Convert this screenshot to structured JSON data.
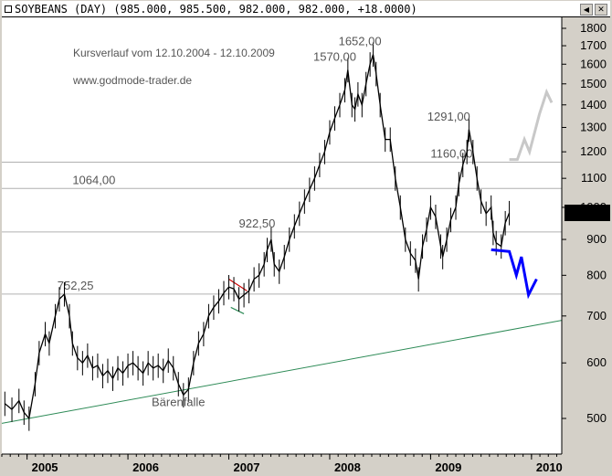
{
  "header": {
    "title": "SOYBEANS (DAY) (985.000, 985.500, 982.000, 982.000, +18.0000)"
  },
  "icons": {
    "close": "close-icon",
    "scroll": "scroll-left-icon"
  },
  "colors": {
    "price": "#000000",
    "support_line": "#2e8b57",
    "bearish_projection": "#0000ff",
    "bullish_projection": "#c8c8c8",
    "last_price_bg": "#000000",
    "last_price_fg": "#00ff00",
    "level_line": "#b0b0b0",
    "triangle": "#cc0000"
  },
  "chart_data": {
    "type": "line",
    "title": "Kursverlauf vom 12.10.2004 - 12.10.2009",
    "subtitle": "www.godmode-trader.de",
    "y_scale": "log",
    "ylim": [
      440,
      1880
    ],
    "xlim": [
      2004.75,
      2010.3
    ],
    "y_ticks": [
      {
        "value": 500,
        "label": "500"
      },
      {
        "value": 600,
        "label": "600"
      },
      {
        "value": 700,
        "label": "700"
      },
      {
        "value": 800,
        "label": "800"
      },
      {
        "value": 900,
        "label": "900"
      },
      {
        "value": 1000,
        "label": "1000"
      },
      {
        "value": 1100,
        "label": "1100"
      },
      {
        "value": 1200,
        "label": "1200"
      },
      {
        "value": 1300,
        "label": "1300"
      },
      {
        "value": 1400,
        "label": "1400"
      },
      {
        "value": 1500,
        "label": "1500"
      },
      {
        "value": 1600,
        "label": "1600"
      },
      {
        "value": 1700,
        "label": "1700"
      },
      {
        "value": 1800,
        "label": "1800"
      }
    ],
    "x_ticks": [
      {
        "value": 2005,
        "label": "2005"
      },
      {
        "value": 2006,
        "label": "2006"
      },
      {
        "value": 2007,
        "label": "2007"
      },
      {
        "value": 2008,
        "label": "2008"
      },
      {
        "value": 2009,
        "label": "2009"
      },
      {
        "value": 2010,
        "label": "2010"
      }
    ],
    "last_price": {
      "value": 982,
      "label": "982.00"
    },
    "levels": [
      {
        "value": 752.25,
        "label": "752,25",
        "x_start": 2004.75,
        "label_x": 2005.3
      },
      {
        "value": 922.5,
        "label": "922,50",
        "x_start": 2004.75,
        "label_x": 2007.1
      },
      {
        "value": 1064,
        "label": "1064,00",
        "x_start": 2004.75,
        "label_x": 2005.45
      },
      {
        "value": 1160,
        "label": "1160,00",
        "x_start": 2004.75,
        "label_x": 2009.0
      }
    ],
    "annotations": [
      {
        "label": "1652,00",
        "x": 2008.3,
        "y": 1652
      },
      {
        "label": "1570,00",
        "x": 2008.05,
        "y": 1570
      },
      {
        "label": "1291,00",
        "x": 2009.18,
        "y": 1291
      },
      {
        "label": "Bärenfalle",
        "x": 2006.5,
        "y": 540
      }
    ],
    "support_trendline": [
      [
        2004.75,
        492
      ],
      [
        2010.3,
        690
      ]
    ],
    "series": [
      {
        "points": [
          [
            2004.78,
            525
          ],
          [
            2004.85,
            515
          ],
          [
            2004.92,
            530
          ],
          [
            2004.97,
            510
          ],
          [
            2005.02,
            500
          ],
          [
            2005.08,
            560
          ],
          [
            2005.12,
            620
          ],
          [
            2005.18,
            660
          ],
          [
            2005.22,
            640
          ],
          [
            2005.28,
            700
          ],
          [
            2005.32,
            740
          ],
          [
            2005.37,
            752
          ],
          [
            2005.42,
            700
          ],
          [
            2005.45,
            640
          ],
          [
            2005.5,
            610
          ],
          [
            2005.55,
            600
          ],
          [
            2005.6,
            615
          ],
          [
            2005.65,
            590
          ],
          [
            2005.7,
            595
          ],
          [
            2005.75,
            575
          ],
          [
            2005.8,
            585
          ],
          [
            2005.85,
            570
          ],
          [
            2005.9,
            590
          ],
          [
            2005.95,
            580
          ],
          [
            2006.0,
            595
          ],
          [
            2006.05,
            600
          ],
          [
            2006.1,
            590
          ],
          [
            2006.15,
            580
          ],
          [
            2006.2,
            600
          ],
          [
            2006.25,
            590
          ],
          [
            2006.3,
            595
          ],
          [
            2006.35,
            585
          ],
          [
            2006.4,
            605
          ],
          [
            2006.45,
            590
          ],
          [
            2006.5,
            560
          ],
          [
            2006.55,
            540
          ],
          [
            2006.6,
            550
          ],
          [
            2006.65,
            600
          ],
          [
            2006.7,
            640
          ],
          [
            2006.75,
            660
          ],
          [
            2006.8,
            700
          ],
          [
            2006.85,
            720
          ],
          [
            2006.9,
            735
          ],
          [
            2006.95,
            755
          ],
          [
            2007.0,
            770
          ],
          [
            2007.05,
            765
          ],
          [
            2007.1,
            740
          ],
          [
            2007.15,
            750
          ],
          [
            2007.2,
            760
          ],
          [
            2007.25,
            790
          ],
          [
            2007.3,
            800
          ],
          [
            2007.35,
            830
          ],
          [
            2007.38,
            870
          ],
          [
            2007.42,
            900
          ],
          [
            2007.45,
            830
          ],
          [
            2007.5,
            810
          ],
          [
            2007.55,
            850
          ],
          [
            2007.6,
            900
          ],
          [
            2007.65,
            940
          ],
          [
            2007.7,
            980
          ],
          [
            2007.75,
            1020
          ],
          [
            2007.8,
            1060
          ],
          [
            2007.85,
            1100
          ],
          [
            2007.9,
            1150
          ],
          [
            2007.95,
            1200
          ],
          [
            2008.0,
            1280
          ],
          [
            2008.05,
            1340
          ],
          [
            2008.1,
            1400
          ],
          [
            2008.15,
            1470
          ],
          [
            2008.18,
            1570
          ],
          [
            2008.22,
            1400
          ],
          [
            2008.25,
            1380
          ],
          [
            2008.28,
            1450
          ],
          [
            2008.32,
            1400
          ],
          [
            2008.36,
            1500
          ],
          [
            2008.4,
            1600
          ],
          [
            2008.43,
            1652
          ],
          [
            2008.46,
            1550
          ],
          [
            2008.5,
            1400
          ],
          [
            2008.55,
            1250
          ],
          [
            2008.6,
            1250
          ],
          [
            2008.65,
            1100
          ],
          [
            2008.7,
            1000
          ],
          [
            2008.75,
            900
          ],
          [
            2008.8,
            860
          ],
          [
            2008.85,
            840
          ],
          [
            2008.88,
            790
          ],
          [
            2008.92,
            880
          ],
          [
            2008.96,
            930
          ],
          [
            2009.0,
            1000
          ],
          [
            2009.05,
            970
          ],
          [
            2009.1,
            880
          ],
          [
            2009.12,
            850
          ],
          [
            2009.16,
            900
          ],
          [
            2009.2,
            960
          ],
          [
            2009.25,
            1000
          ],
          [
            2009.28,
            1080
          ],
          [
            2009.32,
            1150
          ],
          [
            2009.36,
            1200
          ],
          [
            2009.38,
            1291
          ],
          [
            2009.42,
            1200
          ],
          [
            2009.46,
            1100
          ],
          [
            2009.5,
            1020
          ],
          [
            2009.55,
            980
          ],
          [
            2009.6,
            1000
          ],
          [
            2009.62,
            920
          ],
          [
            2009.65,
            890
          ],
          [
            2009.7,
            880
          ],
          [
            2009.74,
            950
          ],
          [
            2009.78,
            982
          ]
        ]
      }
    ],
    "projection_bearish": [
      [
        2009.6,
        870
      ],
      [
        2009.78,
        865
      ],
      [
        2009.85,
        800
      ],
      [
        2009.9,
        850
      ],
      [
        2009.97,
        750
      ],
      [
        2010.05,
        790
      ]
    ],
    "projection_bullish": [
      [
        2009.78,
        1170
      ],
      [
        2009.86,
        1170
      ],
      [
        2009.93,
        1250
      ],
      [
        2009.98,
        1200
      ],
      [
        2010.08,
        1360
      ],
      [
        2010.15,
        1460
      ],
      [
        2010.2,
        1410
      ]
    ],
    "triangle": {
      "upper": [
        [
          2007.0,
          790
        ],
        [
          2007.18,
          760
        ]
      ],
      "lower": [
        [
          2007.02,
          720
        ],
        [
          2007.15,
          705
        ]
      ]
    }
  }
}
